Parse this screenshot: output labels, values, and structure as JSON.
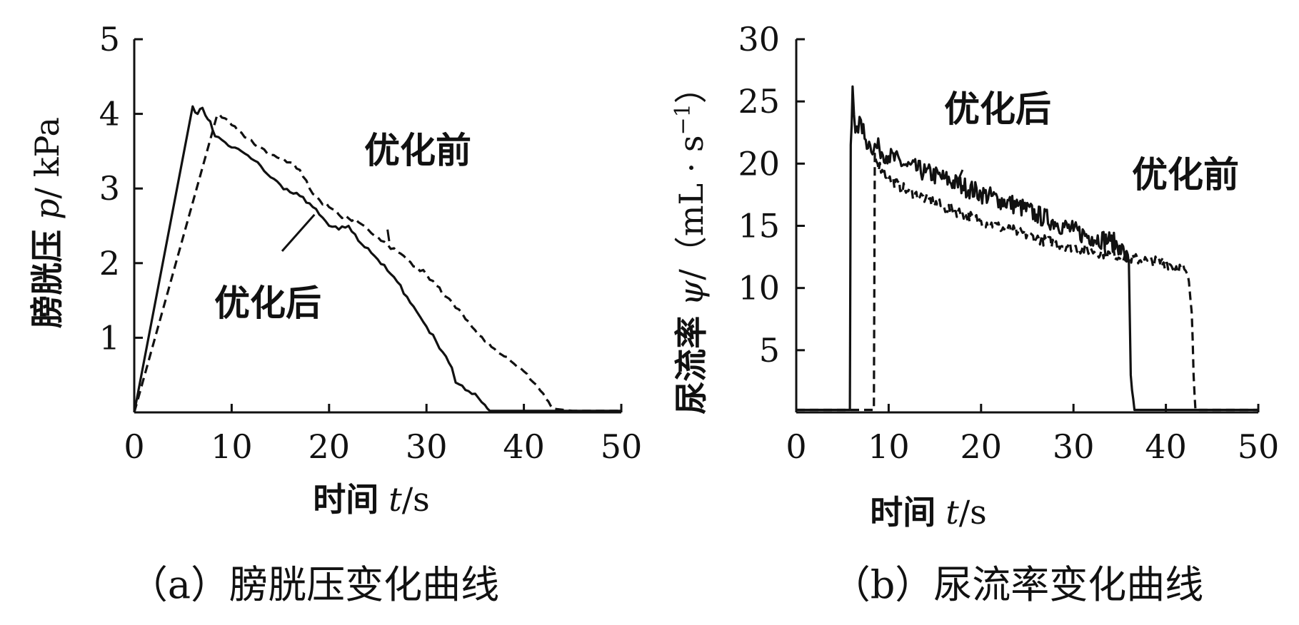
{
  "chart_data": [
    {
      "type": "line",
      "caption": "（a）膀胱压变化曲线",
      "ylabel_prefix": "膀胱压",
      "ylabel_var": "p",
      "ylabel_unit": "/ kPa",
      "xlabel_prefix": "时间",
      "xlabel_var": "t",
      "xlabel_unit": "/s",
      "xlim": [
        0,
        50
      ],
      "ylim": [
        0,
        5
      ],
      "x_ticks": [
        "0",
        "10",
        "20",
        "30",
        "40",
        "50"
      ],
      "y_ticks": [
        "1",
        "2",
        "3",
        "4",
        "5"
      ],
      "series": [
        {
          "name": "优化后",
          "style": "solid",
          "x": [
            0,
            6,
            6.5,
            7,
            7.3,
            7.8,
            8.3,
            9,
            10,
            11,
            12,
            13,
            14,
            15,
            16,
            17,
            18,
            19,
            20,
            21,
            22,
            23,
            24,
            25,
            26,
            27,
            28,
            29,
            30,
            31,
            32,
            32.6,
            33,
            34,
            35,
            36,
            36.5,
            40,
            45,
            50
          ],
          "y": [
            0,
            4.1,
            4.0,
            4.08,
            3.98,
            3.9,
            3.7,
            3.65,
            3.55,
            3.5,
            3.4,
            3.3,
            3.15,
            3.05,
            2.95,
            2.9,
            2.8,
            2.65,
            2.5,
            2.45,
            2.5,
            2.3,
            2.2,
            2.05,
            1.9,
            1.75,
            1.55,
            1.35,
            1.15,
            0.95,
            0.75,
            0.6,
            0.4,
            0.3,
            0.25,
            0.1,
            0.02,
            0.02,
            0.02,
            0.02
          ]
        },
        {
          "name": "优化前",
          "style": "dashed",
          "x": [
            0,
            8.5,
            9,
            10,
            11,
            12,
            13,
            14,
            15,
            16,
            17,
            18,
            19,
            20,
            21,
            22,
            23,
            24,
            25,
            26,
            27,
            28,
            29,
            30,
            31,
            32,
            33,
            34,
            35,
            36,
            37,
            38,
            39,
            40,
            41,
            42,
            42.5,
            43,
            45,
            50
          ],
          "y": [
            0,
            3.98,
            3.95,
            3.85,
            3.75,
            3.65,
            3.55,
            3.45,
            3.4,
            3.35,
            3.25,
            3.0,
            2.85,
            2.75,
            2.65,
            2.6,
            2.55,
            2.45,
            2.35,
            2.25,
            2.15,
            2.05,
            1.95,
            1.85,
            1.7,
            1.55,
            1.4,
            1.25,
            1.1,
            0.95,
            0.85,
            0.75,
            0.65,
            0.55,
            0.4,
            0.25,
            0.15,
            0.05,
            0.02,
            0.02
          ]
        }
      ],
      "annotations": [
        {
          "text": "优化前",
          "x": 26,
          "y": 2.45
        },
        {
          "text": "优化后",
          "x": 18.5,
          "y": 2.65
        }
      ]
    },
    {
      "type": "line",
      "caption": "（b）尿流率变化曲线",
      "ylabel_prefix": "尿流率",
      "ylabel_var": "ψ",
      "ylabel_unit": "/（mL · s",
      "ylabel_sup": "−1",
      "ylabel_close": "）",
      "xlabel_prefix": "时间",
      "xlabel_var": "t",
      "xlabel_unit": "/s",
      "xlim": [
        0,
        50
      ],
      "ylim": [
        0,
        30
      ],
      "x_ticks": [
        "0",
        "10",
        "20",
        "30",
        "40",
        "50"
      ],
      "y_ticks": [
        "5",
        "10",
        "15",
        "20",
        "25",
        "30"
      ],
      "series": [
        {
          "name": "优化后",
          "style": "solid",
          "x": [
            0,
            5.8,
            5.9,
            6.1,
            6.4,
            6.7,
            7.0,
            7.4,
            8,
            9,
            10,
            12,
            14,
            16,
            18,
            20,
            22,
            24,
            26,
            28,
            30,
            32,
            34,
            35,
            35.5,
            36,
            36.2,
            36.6,
            40,
            45,
            50
          ],
          "y": [
            0.2,
            0.2,
            21.5,
            26.2,
            22.5,
            22.5,
            23.5,
            22,
            21.5,
            21.2,
            20.6,
            19.8,
            19.3,
            18.8,
            18.2,
            17.6,
            17.1,
            16.6,
            15.9,
            15.3,
            14.6,
            14.1,
            13.8,
            13.4,
            12.8,
            12,
            3,
            0.2,
            0.2,
            0.2,
            0.2
          ],
          "noise": 1.6
        },
        {
          "name": "优化前",
          "style": "dashed",
          "x": [
            0,
            8.4,
            8.5,
            8.8,
            9.3,
            10,
            12,
            14,
            16,
            18,
            20,
            22,
            24,
            26,
            28,
            30,
            32,
            34,
            36,
            38,
            40,
            42,
            42.5,
            42.8,
            43,
            43.2,
            45,
            50
          ],
          "y": [
            0.2,
            0.2,
            20.8,
            20,
            19.5,
            18.8,
            17.8,
            17.2,
            16.5,
            16,
            15.4,
            14.9,
            14.5,
            14,
            13.6,
            13.3,
            13,
            12.7,
            12.4,
            12.2,
            12,
            11.5,
            10.5,
            8,
            3,
            0.2,
            0.2,
            0.2
          ],
          "noise": 0.9
        }
      ],
      "annotations": [
        {
          "text": "优化后",
          "x": 18,
          "y": 19.5
        },
        {
          "text": "优化前",
          "x": 39.5,
          "y": 12.2
        }
      ]
    }
  ]
}
